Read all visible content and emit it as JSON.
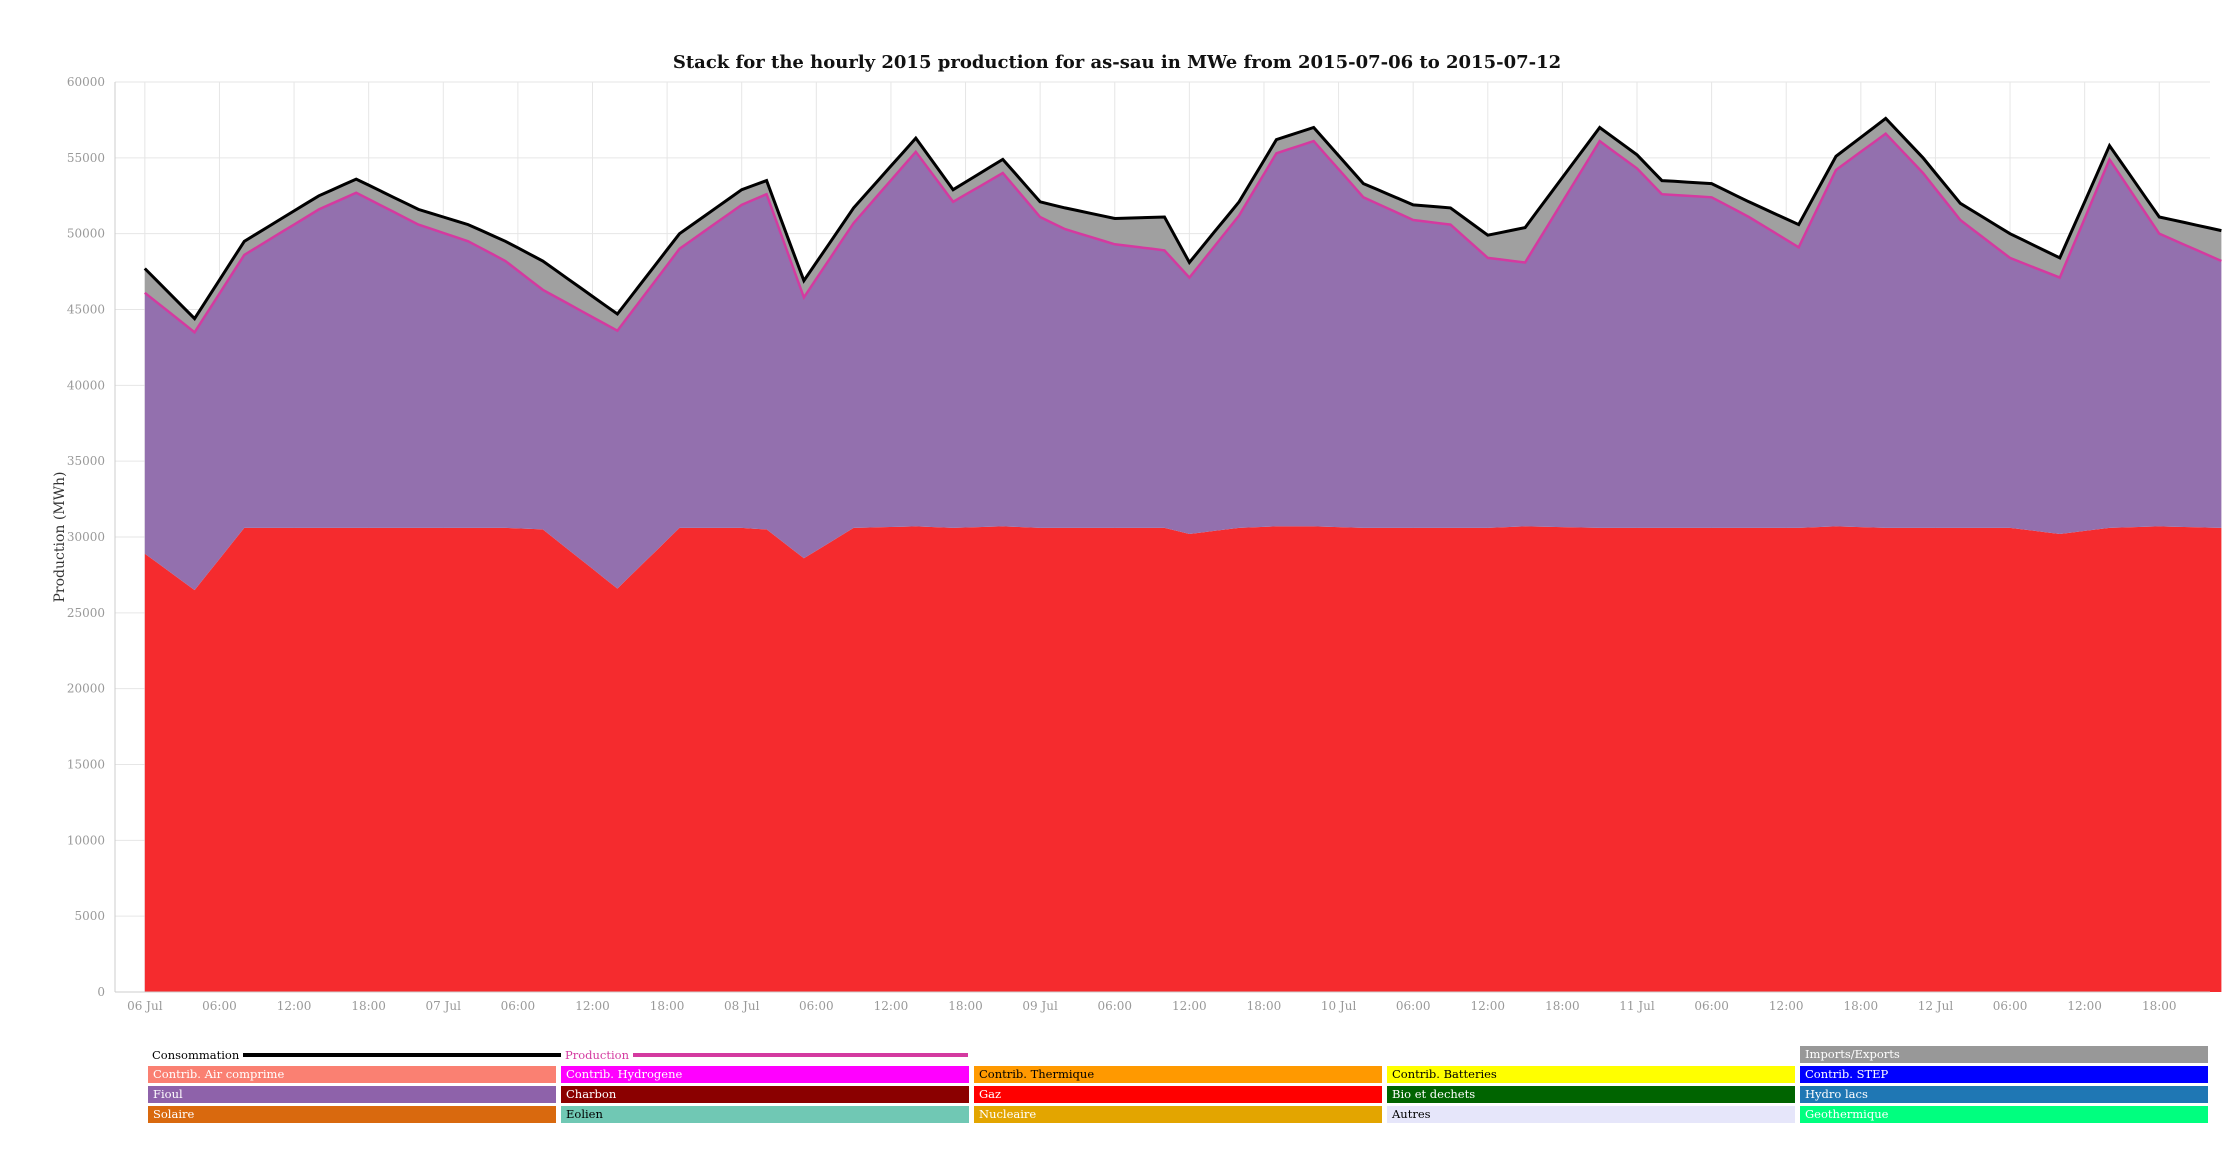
{
  "chart_data": {
    "type": "area",
    "title": "Stack for the hourly 2015 production for as-sau in MWe from 2015-07-06 to 2015-07-12",
    "ylabel": "Production (MWh)",
    "xlabel": "",
    "ylim": [
      0,
      60000
    ],
    "yticks": [
      0,
      5000,
      10000,
      15000,
      20000,
      25000,
      30000,
      35000,
      40000,
      45000,
      50000,
      55000,
      60000
    ],
    "xlim": [
      -0.1,
      6.92
    ],
    "xticks": [
      {
        "x": 0.0,
        "label": "06 Jul"
      },
      {
        "x": 0.25,
        "label": "06:00"
      },
      {
        "x": 0.5,
        "label": "12:00"
      },
      {
        "x": 0.75,
        "label": "18:00"
      },
      {
        "x": 1.0,
        "label": "07 Jul"
      },
      {
        "x": 1.25,
        "label": "06:00"
      },
      {
        "x": 1.5,
        "label": "12:00"
      },
      {
        "x": 1.75,
        "label": "18:00"
      },
      {
        "x": 2.0,
        "label": "08 Jul"
      },
      {
        "x": 2.25,
        "label": "06:00"
      },
      {
        "x": 2.5,
        "label": "12:00"
      },
      {
        "x": 2.75,
        "label": "18:00"
      },
      {
        "x": 3.0,
        "label": "09 Jul"
      },
      {
        "x": 3.25,
        "label": "06:00"
      },
      {
        "x": 3.5,
        "label": "12:00"
      },
      {
        "x": 3.75,
        "label": "18:00"
      },
      {
        "x": 4.0,
        "label": "10 Jul"
      },
      {
        "x": 4.25,
        "label": "06:00"
      },
      {
        "x": 4.5,
        "label": "12:00"
      },
      {
        "x": 4.75,
        "label": "18:00"
      },
      {
        "x": 5.0,
        "label": "11 Jul"
      },
      {
        "x": 5.25,
        "label": "06:00"
      },
      {
        "x": 5.5,
        "label": "12:00"
      },
      {
        "x": 5.75,
        "label": "18:00"
      },
      {
        "x": 6.0,
        "label": "12 Jul"
      },
      {
        "x": 6.25,
        "label": "06:00"
      },
      {
        "x": 6.5,
        "label": "12:00"
      },
      {
        "x": 6.75,
        "label": "18:00"
      }
    ],
    "x_unit": "days from 2015-07-06 00:00 (hourly, 168 steps)",
    "grid": true,
    "series_anchor_hours": [
      0,
      4,
      8,
      14,
      17,
      22,
      26,
      29,
      32,
      38,
      43,
      48,
      50,
      53,
      57,
      62,
      65,
      69,
      72,
      74,
      78,
      82,
      84,
      88,
      91,
      94,
      98,
      102,
      105,
      108,
      111,
      117,
      120,
      122,
      126,
      129,
      133,
      136,
      140,
      143,
      146,
      150,
      154,
      158,
      162,
      167
    ],
    "series": [
      {
        "name": "Gaz",
        "color": "#f52b2e",
        "values": [
          28900,
          26500,
          30600,
          30600,
          30600,
          30600,
          30600,
          30600,
          30500,
          26600,
          30600,
          30600,
          30500,
          28600,
          30600,
          30700,
          30600,
          30700,
          30600,
          30600,
          30600,
          30600,
          30200,
          30600,
          30700,
          30700,
          30600,
          30600,
          30600,
          30600,
          30700,
          30600,
          30600,
          30600,
          30600,
          30600,
          30600,
          30700,
          30600,
          30600,
          30600,
          30600,
          30200,
          30600,
          30700,
          30600
        ]
      },
      {
        "name": "Fioul",
        "color": "#9370ae",
        "values": [
          17200,
          17000,
          18000,
          21000,
          22100,
          20000,
          18900,
          17600,
          15800,
          17000,
          18400,
          21300,
          22100,
          17200,
          20100,
          24700,
          21500,
          23300,
          20500,
          19700,
          18700,
          18300,
          16900,
          20600,
          24600,
          25400,
          21800,
          20300,
          20000,
          17800,
          17400,
          25500,
          23700,
          22000,
          21800,
          20500,
          18500,
          23500,
          26000,
          23400,
          20300,
          17800,
          16900,
          24300,
          19300,
          17600
        ]
      },
      {
        "name": "Imports/Exports",
        "color": "#a0a0a0",
        "values": [
          1600,
          900,
          900,
          900,
          900,
          1000,
          1100,
          1300,
          1900,
          1100,
          1000,
          1000,
          900,
          1100,
          1000,
          900,
          800,
          900,
          1000,
          1400,
          1700,
          2200,
          1000,
          900,
          900,
          900,
          900,
          1000,
          1100,
          1500,
          2300,
          900,
          900,
          900,
          900,
          1000,
          1500,
          900,
          1000,
          1000,
          1100,
          1600,
          1300,
          900,
          1100,
          2000
        ]
      }
    ],
    "consumption_line": {
      "name": "Consommation",
      "color": "#000000"
    },
    "production_line": {
      "name": "Production",
      "color": "#d43aa0"
    },
    "legend": {
      "placement": "bottom",
      "lines": [
        {
          "label": "Consommation",
          "color": "#000000"
        },
        {
          "label": "Production",
          "color": "#d43aa0"
        }
      ],
      "items": [
        {
          "label": "Imports/Exports",
          "color": "#989898",
          "text_color": "#ffffff"
        },
        {
          "label": "Contrib. Air comprime",
          "color": "#fa8072",
          "text_color": "#ffffff"
        },
        {
          "label": "Contrib. Hydrogene",
          "color": "#ff00ff",
          "text_color": "#ffffff"
        },
        {
          "label": "Contrib. Thermique",
          "color": "#ff9900",
          "text_color": "#000000"
        },
        {
          "label": "Contrib. Batteries",
          "color": "#ffff00",
          "text_color": "#000000"
        },
        {
          "label": "Contrib. STEP",
          "color": "#0000ff",
          "text_color": "#ffffff"
        },
        {
          "label": "Fioul",
          "color": "#8e62aa",
          "text_color": "#ffffff"
        },
        {
          "label": "Charbon",
          "color": "#8b0000",
          "text_color": "#ffffff"
        },
        {
          "label": "Gaz",
          "color": "#ff0000",
          "text_color": "#ffffff"
        },
        {
          "label": "Bio et dechets",
          "color": "#006400",
          "text_color": "#ffffff"
        },
        {
          "label": "Hydro lacs",
          "color": "#1f77b4",
          "text_color": "#ffffff"
        },
        {
          "label": "Solaire",
          "color": "#d9690e",
          "text_color": "#ffffff"
        },
        {
          "label": "Eolien",
          "color": "#70c8b4",
          "text_color": "#000000"
        },
        {
          "label": "Nucleaire",
          "color": "#e3a500",
          "text_color": "#ffffff"
        },
        {
          "label": "Autres",
          "color": "#e6e6fa",
          "text_color": "#000000"
        },
        {
          "label": "Geothermique",
          "color": "#00ff7f",
          "text_color": "#ffffff"
        }
      ]
    }
  }
}
